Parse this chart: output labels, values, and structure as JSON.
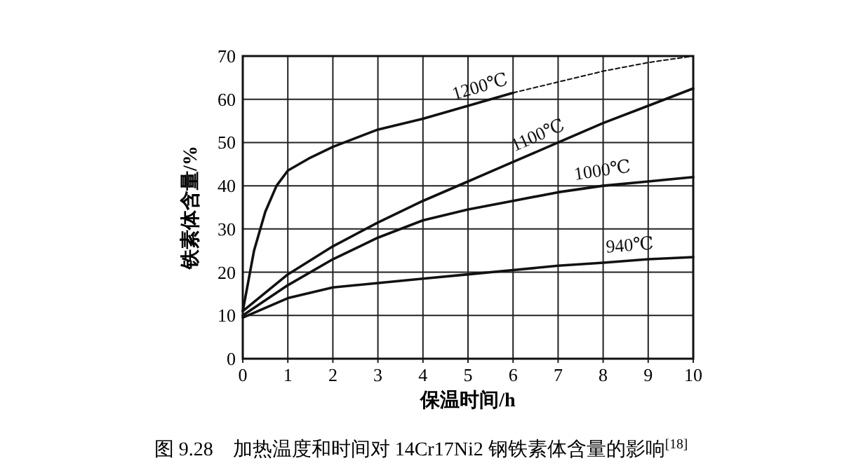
{
  "chart_data": {
    "type": "line",
    "title": "图 9.28　加热温度和时间对 14Cr17Ni2 钢铁素体含量的影响$^{[18]}$",
    "xlabel": "保温时间/h",
    "ylabel": "铁素体含量/%",
    "xlim": [
      0,
      10
    ],
    "ylim": [
      0,
      70
    ],
    "xticks": [
      0,
      1,
      2,
      3,
      4,
      5,
      6,
      7,
      8,
      9,
      10
    ],
    "yticks": [
      0,
      10,
      20,
      30,
      40,
      50,
      60,
      70
    ],
    "grid": true,
    "marker": "none",
    "line_style": "solid",
    "series": [
      {
        "name": "1200℃",
        "color": "#111111",
        "x": [
          0,
          0.25,
          0.5,
          0.75,
          1,
          1.5,
          2,
          3,
          4,
          5,
          6
        ],
        "values": [
          11,
          25,
          34,
          40,
          43.5,
          46.5,
          49,
          53,
          55.5,
          58.5,
          61.5
        ]
      },
      {
        "color": "#111111",
        "line_style": "dashed",
        "x": [
          6,
          7,
          8,
          9,
          10
        ],
        "values": [
          61.5,
          64,
          66.5,
          68.5,
          70
        ]
      },
      {
        "name": "1100℃",
        "color": "#111111",
        "x": [
          0,
          1,
          2,
          3,
          4,
          5,
          6,
          7,
          8,
          9,
          10
        ],
        "values": [
          11,
          19.5,
          26,
          31.5,
          36.5,
          41,
          45.5,
          50,
          54.5,
          58.5,
          62.5
        ]
      },
      {
        "name": "1000℃",
        "color": "#111111",
        "x": [
          0,
          1,
          2,
          3,
          4,
          5,
          6,
          7,
          8,
          9,
          10
        ],
        "values": [
          10,
          17,
          23,
          28,
          32,
          34.5,
          36.5,
          38.5,
          40,
          41,
          42
        ]
      },
      {
        "name": "940℃",
        "color": "#111111",
        "x": [
          0,
          1,
          2,
          3,
          4,
          5,
          6,
          7,
          8,
          9,
          10
        ],
        "values": [
          9.5,
          14,
          16.5,
          17.5,
          18.5,
          19.5,
          20.5,
          21.5,
          22.2,
          23,
          23.5
        ]
      }
    ]
  }
}
